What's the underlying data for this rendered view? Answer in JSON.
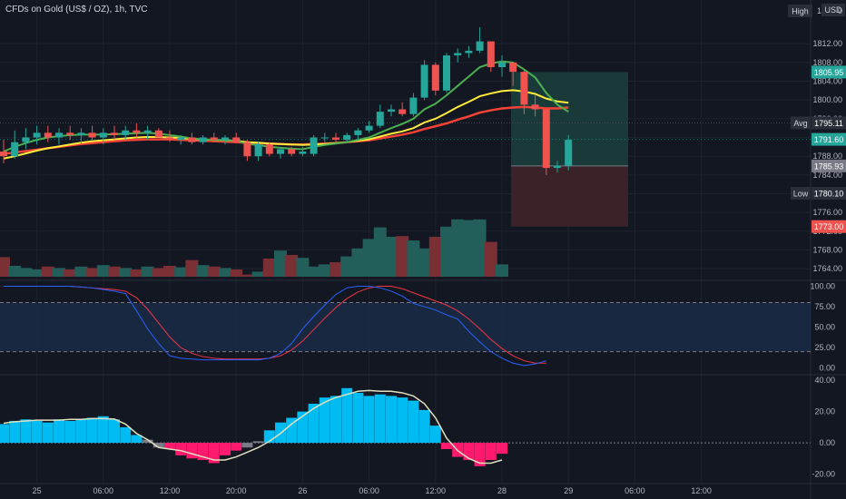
{
  "header": {
    "symbol_label": "CFDs on Gold (US$ / OZ), 1h, TVC"
  },
  "badges": {
    "high_label": "High",
    "high_value": "1",
    "currency": "USD",
    "currency_extra": "0",
    "avg_label": "Avg",
    "low_label": "Low"
  },
  "colors": {
    "bg": "#131722",
    "up": "#26a69a",
    "down": "#ef5350",
    "fast_ma": "#4caf50",
    "mid_ma": "#ffeb3b",
    "slow_ma": "#f44336",
    "stoch_k": "#2962ff",
    "stoch_d": "#f23645",
    "hist_pos": "#00bcf2",
    "hist_neg": "#ff1a6e",
    "hist_neutral": "#787b86",
    "signal": "#e0e0c0"
  },
  "chart_data": [
    {
      "type": "candlestick",
      "title": "CFDs on Gold (US$ / OZ), 1h, TVC",
      "y_ticks": [
        "1812.00",
        "1808.00",
        "1804.00",
        "1800.00",
        "1796.00",
        "1792.00",
        "1788.00",
        "1784.00",
        "1780.00",
        "1776.00",
        "1772.00",
        "1768.00",
        "1764.00"
      ],
      "ylim": [
        1762.3,
        1819
      ],
      "price_labels": [
        {
          "label": "1805.95",
          "value": 1805.95,
          "color": "#26a69a"
        },
        {
          "label": "1795.11",
          "value": 1795.11,
          "color": "#2a2e39"
        },
        {
          "label": "1791.60",
          "value": 1791.6,
          "color": "#26a69a"
        },
        {
          "label": "1785.93",
          "value": 1785.93,
          "color": "#787b86"
        },
        {
          "label": "1780.10",
          "value": 1780.1,
          "color": "#2a2e39"
        },
        {
          "label": "1773.00",
          "value": 1773.0,
          "color": "#ef5350"
        }
      ],
      "candles": [
        [
          1789,
          1791.5,
          1786.5,
          1788
        ],
        [
          1788,
          1793.5,
          1787.5,
          1791
        ],
        [
          1791,
          1794,
          1789.5,
          1792
        ],
        [
          1792,
          1794.5,
          1790.5,
          1793
        ],
        [
          1793,
          1794.5,
          1791,
          1792
        ],
        [
          1792,
          1794,
          1790.5,
          1793
        ],
        [
          1793,
          1794.5,
          1791.5,
          1792.5
        ],
        [
          1792.5,
          1794,
          1790.5,
          1793
        ],
        [
          1793,
          1794.5,
          1791.5,
          1792
        ],
        [
          1792,
          1794,
          1790.5,
          1793
        ],
        [
          1793,
          1794.5,
          1791.5,
          1792.5
        ],
        [
          1792.5,
          1794.5,
          1791.5,
          1793.5
        ],
        [
          1793.5,
          1795,
          1792,
          1793
        ],
        [
          1793,
          1794.5,
          1791.5,
          1793.5
        ],
        [
          1793.5,
          1794,
          1792,
          1792
        ],
        [
          1792,
          1793.5,
          1791,
          1791.5
        ],
        [
          1791.5,
          1792.5,
          1790.5,
          1792
        ],
        [
          1792,
          1793,
          1790.5,
          1791
        ],
        [
          1791,
          1792.5,
          1790.5,
          1792
        ],
        [
          1792,
          1793,
          1791,
          1791.5
        ],
        [
          1791.5,
          1792.5,
          1790.5,
          1792
        ],
        [
          1792,
          1793,
          1791,
          1791
        ],
        [
          1791,
          1791.5,
          1787,
          1788
        ],
        [
          1788,
          1791,
          1787,
          1790.5
        ],
        [
          1790.5,
          1791,
          1788,
          1788.5
        ],
        [
          1788.5,
          1790,
          1787.5,
          1789.5
        ],
        [
          1789.5,
          1790,
          1788,
          1788.5
        ],
        [
          1788.5,
          1790,
          1788,
          1789
        ],
        [
          1788.5,
          1792.5,
          1788,
          1792
        ],
        [
          1792,
          1793,
          1791,
          1792
        ],
        [
          1792,
          1793,
          1791,
          1791.5
        ],
        [
          1791.5,
          1793,
          1791,
          1792.5
        ],
        [
          1792.5,
          1794,
          1791.5,
          1793.5
        ],
        [
          1793.5,
          1795.5,
          1793,
          1794.5
        ],
        [
          1794.5,
          1799,
          1794,
          1797.5
        ],
        [
          1797.5,
          1799,
          1796.5,
          1798
        ],
        [
          1798,
          1799.5,
          1796.5,
          1797
        ],
        [
          1797,
          1801.5,
          1796.5,
          1800.5
        ],
        [
          1800.5,
          1808.5,
          1800,
          1807.5
        ],
        [
          1807.5,
          1808,
          1801,
          1802
        ],
        [
          1802,
          1810,
          1801.5,
          1809.5
        ],
        [
          1809.5,
          1811,
          1808,
          1810
        ],
        [
          1810,
          1811.5,
          1809,
          1810.5
        ],
        [
          1810.5,
          1815.5,
          1810,
          1812.5
        ],
        [
          1812.5,
          1812.5,
          1806,
          1807
        ],
        [
          1807,
          1809.5,
          1805,
          1808
        ],
        [
          1808,
          1808,
          1803,
          1806
        ],
        [
          1806,
          1806.5,
          1797,
          1799
        ],
        [
          1799,
          1801,
          1796.5,
          1798
        ],
        [
          1798,
          1798,
          1784,
          1785.5
        ],
        [
          1785.5,
          1787,
          1784.5,
          1786
        ],
        [
          1786,
          1792.5,
          1785,
          1791.5
        ]
      ],
      "ma_fast": [
        1789,
        1790,
        1790.8,
        1791.5,
        1792,
        1792.3,
        1792.5,
        1792.6,
        1792.6,
        1792.6,
        1792.7,
        1792.8,
        1792.9,
        1793,
        1792.8,
        1792.5,
        1792.2,
        1791.8,
        1791.6,
        1791.5,
        1791.4,
        1791.3,
        1790.6,
        1790.4,
        1790,
        1789.8,
        1789.6,
        1789.5,
        1790,
        1790.4,
        1790.7,
        1791,
        1791.5,
        1792,
        1793,
        1794,
        1794.9,
        1796,
        1798,
        1799.2,
        1801,
        1803,
        1805,
        1807,
        1807.8,
        1808.2,
        1808,
        1806.5,
        1804.8,
        1801.5,
        1799,
        1797.5
      ],
      "ma_mid": [
        1787.5,
        1788,
        1788.6,
        1789.2,
        1789.7,
        1790.1,
        1790.5,
        1790.9,
        1791.2,
        1791.4,
        1791.6,
        1791.8,
        1792,
        1792.1,
        1792.1,
        1792,
        1791.9,
        1791.7,
        1791.6,
        1791.5,
        1791.4,
        1791.3,
        1791,
        1790.9,
        1790.7,
        1790.6,
        1790.5,
        1790.4,
        1790.5,
        1790.6,
        1790.8,
        1791,
        1791.3,
        1791.6,
        1792.2,
        1792.8,
        1793.3,
        1794,
        1795.2,
        1796,
        1797.2,
        1798.5,
        1799.6,
        1800.8,
        1801.4,
        1801.9,
        1802.1,
        1801.8,
        1801.3,
        1800.3,
        1799.7,
        1799.4
      ],
      "ma_slow": [
        1788.5,
        1788.8,
        1789.1,
        1789.4,
        1789.7,
        1790,
        1790.3,
        1790.6,
        1790.8,
        1791,
        1791.2,
        1791.4,
        1791.5,
        1791.6,
        1791.6,
        1791.6,
        1791.5,
        1791.4,
        1791.3,
        1791.2,
        1791.1,
        1791,
        1790.9,
        1790.8,
        1790.7,
        1790.6,
        1790.5,
        1790.5,
        1790.6,
        1790.7,
        1790.8,
        1791,
        1791.2,
        1791.4,
        1791.8,
        1792.2,
        1792.6,
        1793.1,
        1793.8,
        1794.4,
        1795,
        1795.8,
        1796.5,
        1797.3,
        1797.8,
        1798.2,
        1798.4,
        1798.5,
        1798.4,
        1798.2,
        1798.2,
        1798.4
      ],
      "volume": [
        0.27,
        0.15,
        0.12,
        0.1,
        0.14,
        0.12,
        0.1,
        0.14,
        0.12,
        0.16,
        0.14,
        0.12,
        0.1,
        0.14,
        0.12,
        0.15,
        0.13,
        0.23,
        0.16,
        0.14,
        0.12,
        0.1,
        0.03,
        0.07,
        0.25,
        0.36,
        0.3,
        0.26,
        0.14,
        0.17,
        0.2,
        0.28,
        0.39,
        0.52,
        0.68,
        0.55,
        0.56,
        0.5,
        0.39,
        0.55,
        0.69,
        0.79,
        0.78,
        0.79,
        0.48,
        0.17
      ]
    },
    {
      "type": "line",
      "y_ticks": [
        "100.00",
        "75.00",
        "50.00",
        "25.00",
        "0.00"
      ],
      "ylim": [
        -7,
        105
      ],
      "bands": [
        80,
        20
      ],
      "series": [
        {
          "values": [
            100,
            100,
            100,
            100,
            100,
            100,
            100,
            99,
            98,
            96,
            94,
            91,
            70,
            48,
            30,
            15,
            12,
            11,
            10,
            10,
            10,
            10,
            10,
            10,
            12,
            18,
            30,
            48,
            63,
            77,
            90,
            98,
            100,
            100,
            98,
            94,
            88,
            79,
            75,
            71,
            65,
            60,
            45,
            32,
            20,
            12,
            6,
            3,
            5,
            9
          ]
        },
        {
          "values": [
            100,
            100,
            100,
            100,
            100,
            100,
            100,
            99,
            98,
            97,
            96,
            94,
            86,
            72,
            55,
            38,
            25,
            18,
            14,
            12,
            11,
            11,
            11,
            11,
            12,
            15,
            22,
            33,
            47,
            61,
            74,
            85,
            93,
            98,
            100,
            100,
            97,
            92,
            87,
            82,
            77,
            70,
            60,
            48,
            35,
            24,
            15,
            9,
            6,
            6
          ]
        }
      ]
    },
    {
      "type": "bar",
      "y_ticks": [
        "40.00",
        "20.00",
        "0.00",
        "-20.00"
      ],
      "ylim": [
        -25.5,
        43
      ],
      "values": [
        12,
        14,
        15,
        14,
        13,
        15,
        14,
        15,
        16,
        17,
        15,
        10,
        5,
        2,
        -3,
        -4,
        -8,
        -10,
        -11,
        -13,
        -8,
        -5,
        -3,
        1,
        8,
        13,
        16,
        20,
        25,
        29,
        30,
        35,
        32,
        30,
        31,
        30,
        29,
        27,
        21,
        11,
        -4,
        -9,
        -11,
        -15,
        -11,
        -7
      ],
      "signal": [
        12.5,
        13.5,
        14,
        14.5,
        14.5,
        14.5,
        15,
        15,
        15.5,
        15.5,
        15.2,
        12,
        6,
        2,
        -3,
        -4,
        -5,
        -7,
        -9,
        -11,
        -11,
        -9,
        -6,
        -3,
        1,
        6,
        12,
        17,
        22,
        26,
        29,
        31,
        33,
        33.5,
        33,
        33,
        32,
        30,
        25,
        16,
        3,
        -5,
        -10,
        -13,
        -13,
        -11
      ]
    }
  ],
  "x_axis": {
    "ticks": [
      {
        "label": "25",
        "x": 3
      },
      {
        "label": "06:00",
        "x": 9
      },
      {
        "label": "12:00",
        "x": 15
      },
      {
        "label": "20:00",
        "x": 21
      },
      {
        "label": "26",
        "x": 27
      },
      {
        "label": "06:00",
        "x": 33
      },
      {
        "label": "12:00",
        "x": 39
      },
      {
        "label": "28",
        "x": 45
      },
      {
        "label": "29",
        "x": 51
      },
      {
        "label": "06:00",
        "x": 57
      },
      {
        "label": "12:00",
        "x": 63
      }
    ]
  }
}
